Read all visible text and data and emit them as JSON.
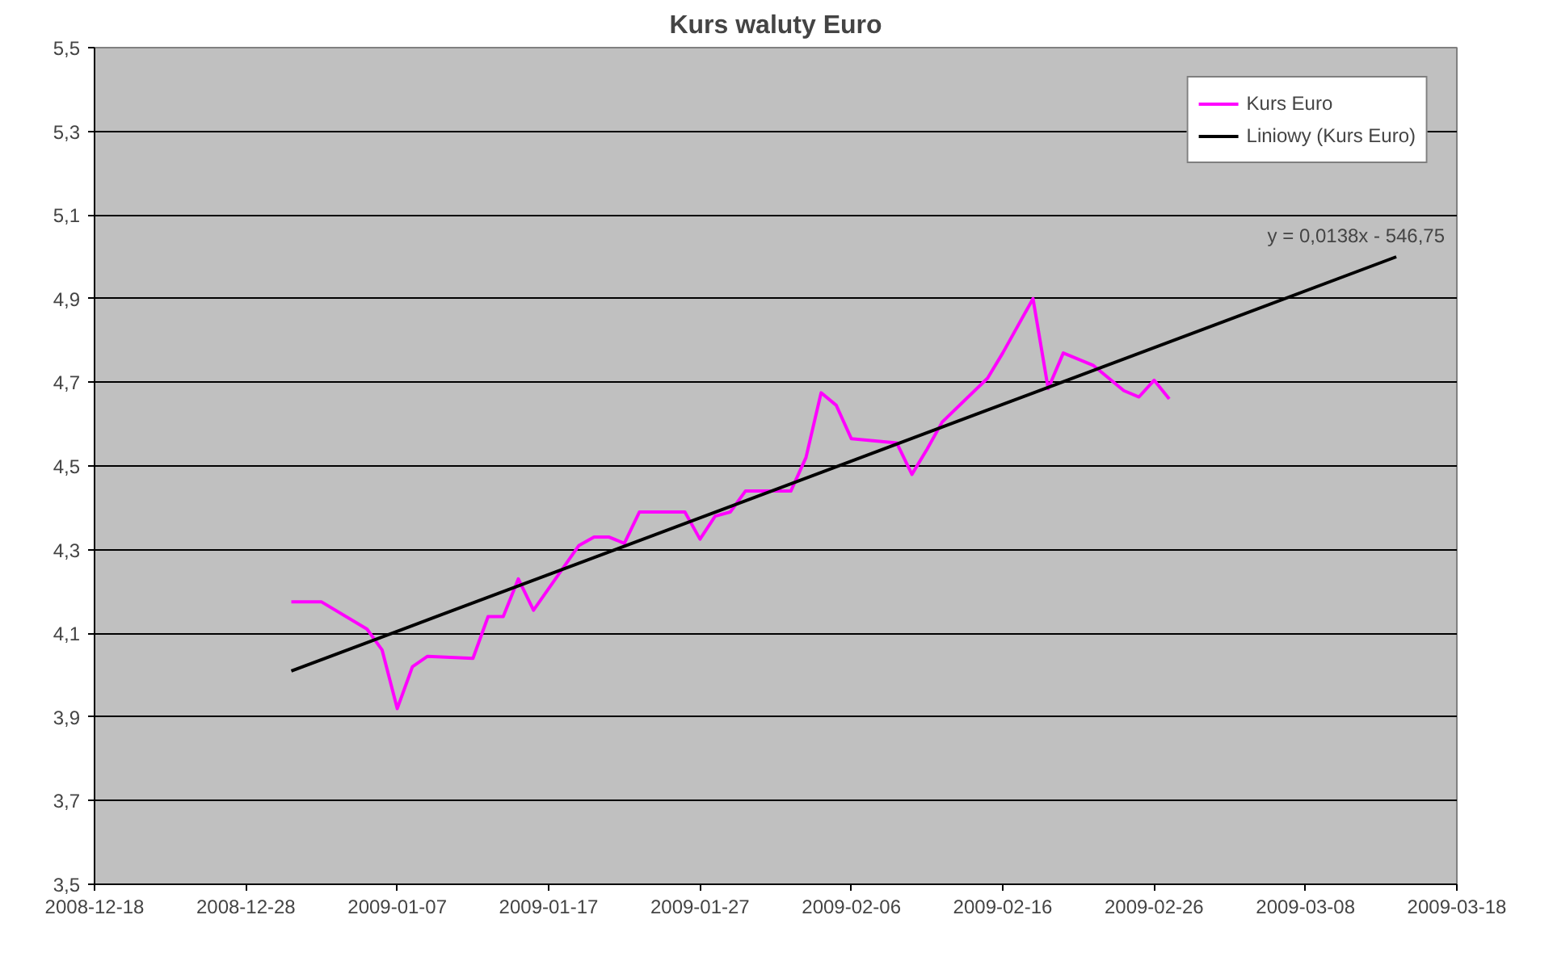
{
  "chart_data": {
    "type": "line",
    "title": "Kurs waluty Euro",
    "series": [
      {
        "name": "Kurs Euro",
        "color": "#ff00ff",
        "x": [
          "2008-12-31",
          "2009-01-02",
          "2009-01-05",
          "2009-01-06",
          "2009-01-07",
          "2009-01-08",
          "2009-01-09",
          "2009-01-12",
          "2009-01-13",
          "2009-01-14",
          "2009-01-15",
          "2009-01-16",
          "2009-01-19",
          "2009-01-20",
          "2009-01-21",
          "2009-01-22",
          "2009-01-23",
          "2009-01-26",
          "2009-01-27",
          "2009-01-28",
          "2009-01-29",
          "2009-01-30",
          "2009-02-02",
          "2009-02-03",
          "2009-02-04",
          "2009-02-05",
          "2009-02-06",
          "2009-02-09",
          "2009-02-10",
          "2009-02-11",
          "2009-02-12",
          "2009-02-15",
          "2009-02-16",
          "2009-02-18",
          "2009-02-19",
          "2009-02-20",
          "2009-02-22",
          "2009-02-23",
          "2009-02-24",
          "2009-02-25",
          "2009-02-26",
          "2009-02-27"
        ],
        "values": [
          4.175,
          4.175,
          4.11,
          4.06,
          3.92,
          4.02,
          4.045,
          4.04,
          4.14,
          4.14,
          4.23,
          4.155,
          4.31,
          4.33,
          4.33,
          4.315,
          4.39,
          4.39,
          4.325,
          4.38,
          4.39,
          4.44,
          4.44,
          4.52,
          4.675,
          4.645,
          4.565,
          4.555,
          4.48,
          4.54,
          4.605,
          4.71,
          4.77,
          4.9,
          4.685,
          4.77,
          4.74,
          4.71,
          4.68,
          4.665,
          4.705,
          4.66
        ]
      },
      {
        "name": "Liniowy (Kurs Euro)",
        "color": "#000000",
        "x": [
          "2008-12-31",
          "2009-03-14"
        ],
        "values": [
          4.01,
          5.0
        ]
      }
    ],
    "xlim": [
      "2008-12-18",
      "2009-03-18"
    ],
    "xticks": [
      "2008-12-18",
      "2008-12-28",
      "2009-01-07",
      "2009-01-17",
      "2009-01-27",
      "2009-02-06",
      "2009-02-16",
      "2009-02-26",
      "2009-03-08",
      "2009-03-18"
    ],
    "ylim": [
      3.5,
      5.5
    ],
    "yticks": [
      {
        "value": 3.5,
        "label": "3,5"
      },
      {
        "value": 3.7,
        "label": "3,7"
      },
      {
        "value": 3.9,
        "label": "3,9"
      },
      {
        "value": 4.1,
        "label": "4,1"
      },
      {
        "value": 4.3,
        "label": "4,3"
      },
      {
        "value": 4.5,
        "label": "4,5"
      },
      {
        "value": 4.7,
        "label": "4,7"
      },
      {
        "value": 4.9,
        "label": "4,9"
      },
      {
        "value": 5.1,
        "label": "5,1"
      },
      {
        "value": 5.3,
        "label": "5,3"
      },
      {
        "value": 5.5,
        "label": "5,5"
      }
    ],
    "annotations": [
      "y = 0,0138x - 546,75"
    ],
    "grid": "y",
    "legend": "top right",
    "marker": "none",
    "line_style": "solid"
  }
}
